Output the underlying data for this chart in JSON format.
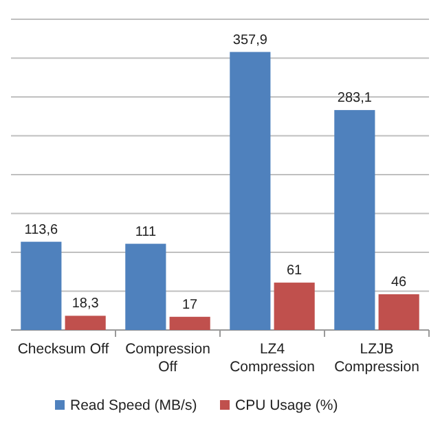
{
  "chart_data": {
    "type": "bar",
    "categories": [
      "Checksum Off",
      "Compression Off",
      "LZ4 Compression",
      "LZJB Compression"
    ],
    "series": [
      {
        "name": "Read Speed (MB/s)",
        "color": "#4f81bd",
        "values": [
          113.6,
          111,
          357.9,
          283.1
        ],
        "value_labels": [
          "113,6",
          "111",
          "357,9",
          "283,1"
        ]
      },
      {
        "name": "CPU Usage (%)",
        "color": "#c0504d",
        "values": [
          18.3,
          17,
          61,
          46
        ],
        "value_labels": [
          "18,3",
          "17",
          "61",
          "46"
        ]
      }
    ],
    "ylim": [
      0,
      400
    ],
    "yticks": [
      {
        "value": 0,
        "label": null
      },
      {
        "value": 50,
        "label": null
      },
      {
        "value": 100,
        "label": null
      },
      {
        "value": 150,
        "label": null
      },
      {
        "value": 200,
        "label": null
      },
      {
        "value": 250,
        "label": null
      },
      {
        "value": 300,
        "label": null
      },
      {
        "value": 350,
        "label": null
      },
      {
        "value": 400,
        "label": null
      }
    ],
    "grid": "y",
    "legend": "bottom",
    "tick_labels": "x"
  }
}
